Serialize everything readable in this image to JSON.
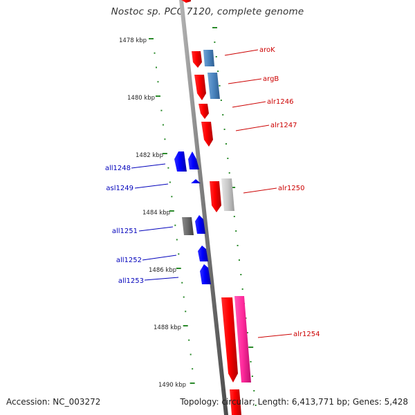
{
  "title": "Nostoc sp. PCC 7120, complete genome",
  "footer": {
    "accession": "Accession: NC_003272",
    "summary": "Topology: circular; Length: 6,413,771 bp; Genes: 5,428"
  },
  "colors": {
    "backbone": "#888888",
    "tick": "#2a8a2a",
    "forward_label": "#cc0000",
    "reverse_label": "#0000bb"
  },
  "scale_labels": [
    "1478 kbp",
    "1480 kbp",
    "1482 kbp",
    "1484 kbp",
    "1486 kbp",
    "1488 kbp",
    "1490 kbp"
  ],
  "genes": [
    {
      "name": "aroK",
      "strand": "forward"
    },
    {
      "name": "argB",
      "strand": "forward"
    },
    {
      "name": "alr1246",
      "strand": "forward"
    },
    {
      "name": "alr1247",
      "strand": "forward"
    },
    {
      "name": "all1248",
      "strand": "reverse"
    },
    {
      "name": "asl1249",
      "strand": "reverse"
    },
    {
      "name": "alr1250",
      "strand": "forward"
    },
    {
      "name": "all1251",
      "strand": "reverse"
    },
    {
      "name": "all1252",
      "strand": "reverse"
    },
    {
      "name": "all1253",
      "strand": "reverse"
    },
    {
      "name": "alr1254",
      "strand": "forward"
    }
  ]
}
